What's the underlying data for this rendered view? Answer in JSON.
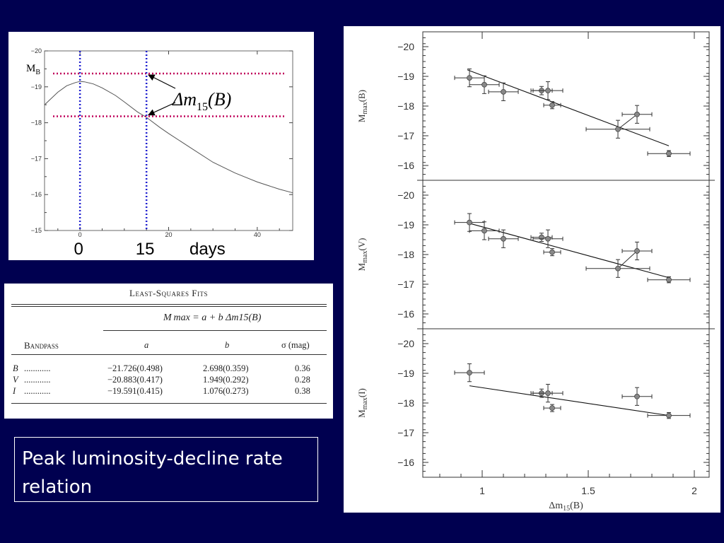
{
  "light_curve": {
    "y_ticks": [
      "−20",
      "−19",
      "−18",
      "−17",
      "−16",
      "−15"
    ],
    "x_ticks": [
      "0",
      "20",
      "40"
    ],
    "mb_label": "M",
    "mb_sub": "B",
    "dm_label": "Δm",
    "dm_sub": "15",
    "dm_paren": "(B)",
    "big_labels": [
      "0",
      "15",
      "days"
    ],
    "colors": {
      "red_dotted": "#c0005a",
      "blue_dotted": "#2020d0",
      "curve": "#555555"
    }
  },
  "table": {
    "title": "Least-Squares Fits",
    "formula": "M max = a + b Δm15(B)",
    "header_band": "Bandpass",
    "header_a": "a",
    "header_b": "b",
    "header_sigma": "σ (mag)",
    "rows": [
      {
        "band": "B",
        "dots": "............",
        "a": "−21.726(0.498)",
        "b": "2.698(0.359)",
        "sigma": "0.36"
      },
      {
        "band": "V",
        "dots": "............",
        "a": "−20.883(0.417)",
        "b": "1.949(0.292)",
        "sigma": "0.28"
      },
      {
        "band": "I",
        "dots": "............",
        "a": "−19.591(0.415)",
        "b": "1.076(0.273)",
        "sigma": "0.38"
      }
    ]
  },
  "caption": {
    "line1": "Peak luminosity-decline rate",
    "line2": "relation"
  },
  "chart_data": [
    {
      "type": "line",
      "title": "",
      "xlabel": "days",
      "ylabel": "",
      "xlim": [
        -8,
        48
      ],
      "ylim": [
        -15,
        -20
      ],
      "x_ticks": [
        0,
        20,
        40
      ],
      "y_ticks": [
        -20,
        -19,
        -18,
        -17,
        -16,
        -15
      ],
      "series": [
        {
          "x": [
            -8,
            -5,
            -3,
            -1,
            0,
            1,
            3,
            5,
            8,
            10,
            13,
            15,
            18,
            20,
            25,
            30,
            35,
            40,
            45,
            48
          ],
          "y": [
            -18.5,
            -18.85,
            -19.03,
            -19.12,
            -19.15,
            -19.14,
            -19.08,
            -18.97,
            -18.76,
            -18.58,
            -18.3,
            -18.15,
            -17.87,
            -17.7,
            -17.3,
            -16.9,
            -16.6,
            -16.35,
            -16.15,
            -16.05
          ]
        }
      ],
      "annotations": {
        "peak_day": 0,
        "day15": 15,
        "peak_mag": -19.37,
        "mag15": -18.18,
        "label_mb": "MB",
        "label_dm": "Δm15(B)"
      }
    },
    {
      "type": "scatter",
      "xlabel": "Δm15(B)",
      "xlim": [
        0.72,
        2.07
      ],
      "x_ticks": [
        1,
        1.5,
        2
      ],
      "panels": [
        {
          "ylabel": "Mmax(B)",
          "ylim": [
            -15.5,
            -20.5
          ],
          "y_ticks": [
            -20,
            -19,
            -18,
            -17,
            -16
          ],
          "points": [
            {
              "x": 0.94,
              "y": -18.95,
              "xerr": 0.07,
              "yerr": 0.3
            },
            {
              "x": 1.01,
              "y": -18.72,
              "xerr": 0.07,
              "yerr": 0.3
            },
            {
              "x": 1.1,
              "y": -18.48,
              "xerr": 0.07,
              "yerr": 0.3
            },
            {
              "x": 1.28,
              "y": -18.52,
              "xerr": 0.05,
              "yerr": 0.14
            },
            {
              "x": 1.31,
              "y": -18.52,
              "xerr": 0.07,
              "yerr": 0.3
            },
            {
              "x": 1.33,
              "y": -18.03,
              "xerr": 0.04,
              "yerr": 0.12
            },
            {
              "x": 1.64,
              "y": -17.22,
              "xerr": 0.15,
              "yerr": 0.3
            },
            {
              "x": 1.73,
              "y": -17.72,
              "xerr": 0.07,
              "yerr": 0.3
            },
            {
              "x": 1.88,
              "y": -16.4,
              "xerr": 0.1,
              "yerr": 0.1
            }
          ],
          "fit": {
            "x": [
              0.93,
              1.88
            ],
            "y": [
              -19.22,
              -16.66
            ]
          },
          "connector": [
            [
              1.64,
              -17.22
            ],
            [
              1.73,
              -17.72
            ]
          ]
        },
        {
          "ylabel": "Mmax(V)",
          "ylim": [
            -15.5,
            -20.5
          ],
          "y_ticks": [
            -20,
            -19,
            -18,
            -17,
            -16
          ],
          "points": [
            {
              "x": 0.94,
              "y": -19.08,
              "xerr": 0.07,
              "yerr": 0.3
            },
            {
              "x": 1.01,
              "y": -18.8,
              "xerr": 0.07,
              "yerr": 0.3
            },
            {
              "x": 1.1,
              "y": -18.53,
              "xerr": 0.07,
              "yerr": 0.3
            },
            {
              "x": 1.28,
              "y": -18.58,
              "xerr": 0.05,
              "yerr": 0.14
            },
            {
              "x": 1.31,
              "y": -18.53,
              "xerr": 0.07,
              "yerr": 0.3
            },
            {
              "x": 1.33,
              "y": -18.08,
              "xerr": 0.04,
              "yerr": 0.12
            },
            {
              "x": 1.64,
              "y": -17.53,
              "xerr": 0.15,
              "yerr": 0.3
            },
            {
              "x": 1.73,
              "y": -18.12,
              "xerr": 0.07,
              "yerr": 0.3
            },
            {
              "x": 1.88,
              "y": -17.15,
              "xerr": 0.1,
              "yerr": 0.1
            }
          ],
          "fit": {
            "x": [
              0.93,
              1.88
            ],
            "y": [
              -19.07,
              -17.22
            ]
          },
          "connector": [
            [
              1.64,
              -17.53
            ],
            [
              1.73,
              -18.12
            ]
          ]
        },
        {
          "ylabel": "Mmax(I)",
          "ylim": [
            -15.5,
            -20.5
          ],
          "y_ticks": [
            -20,
            -19,
            -18,
            -17,
            -16
          ],
          "points": [
            {
              "x": 0.94,
              "y": -19.02,
              "xerr": 0.07,
              "yerr": 0.3
            },
            {
              "x": 1.28,
              "y": -18.33,
              "xerr": 0.05,
              "yerr": 0.14
            },
            {
              "x": 1.31,
              "y": -18.33,
              "xerr": 0.07,
              "yerr": 0.3
            },
            {
              "x": 1.33,
              "y": -17.83,
              "xerr": 0.04,
              "yerr": 0.12
            },
            {
              "x": 1.73,
              "y": -18.22,
              "xerr": 0.07,
              "yerr": 0.3
            },
            {
              "x": 1.88,
              "y": -17.58,
              "xerr": 0.1,
              "yerr": 0.1
            }
          ],
          "fit": {
            "x": [
              0.94,
              1.88
            ],
            "y": [
              -18.58,
              -17.58
            ]
          }
        }
      ]
    }
  ]
}
